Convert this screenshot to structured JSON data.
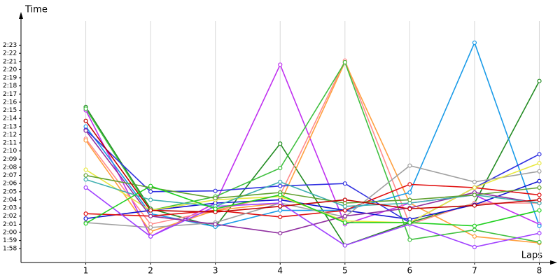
{
  "chart_data": {
    "type": "line",
    "y_label": "Time",
    "x_label": "Laps",
    "x": [
      1,
      2,
      3,
      4,
      5,
      6,
      7,
      8
    ],
    "xlim": [
      0,
      8.2
    ],
    "xticks": [
      1,
      2,
      3,
      4,
      5,
      6,
      7,
      8
    ],
    "ylim": [
      116.3,
      146.4
    ],
    "yticks": [
      {
        "value": 118,
        "label": "1:58"
      },
      {
        "value": 119,
        "label": "1:59"
      },
      {
        "value": 120,
        "label": "2:00"
      },
      {
        "value": 121,
        "label": "2:01"
      },
      {
        "value": 122,
        "label": "2:02"
      },
      {
        "value": 123,
        "label": "2:03"
      },
      {
        "value": 124,
        "label": "2:04"
      },
      {
        "value": 125,
        "label": "2:05"
      },
      {
        "value": 126,
        "label": "2:06"
      },
      {
        "value": 127,
        "label": "2:07"
      },
      {
        "value": 128,
        "label": "2:08"
      },
      {
        "value": 129,
        "label": "2:09"
      },
      {
        "value": 130,
        "label": "2:10"
      },
      {
        "value": 131,
        "label": "2:11"
      },
      {
        "value": 132,
        "label": "2:12"
      },
      {
        "value": 133,
        "label": "2:13"
      },
      {
        "value": 134,
        "label": "2:14"
      },
      {
        "value": 135,
        "label": "2:15"
      },
      {
        "value": 136,
        "label": "2:16"
      },
      {
        "value": 137,
        "label": "2:17"
      },
      {
        "value": 138,
        "label": "2:18"
      },
      {
        "value": 139,
        "label": "2:19"
      },
      {
        "value": 140,
        "label": "2:20"
      },
      {
        "value": 141,
        "label": "2:21"
      },
      {
        "value": 142,
        "label": "2:22"
      },
      {
        "value": 143,
        "label": "2:23"
      }
    ],
    "grid": "x",
    "series": [
      {
        "color": "#228b22",
        "values": [
          135.4,
          122.9,
          120.7,
          130.9,
          118.4,
          121.2,
          123.6,
          138.6
        ]
      },
      {
        "color": "#c030f0",
        "values": [
          135.0,
          119.5,
          123.6,
          140.6,
          121.0,
          123.6,
          124.6,
          121.0
        ]
      },
      {
        "color": "#ff8c8c",
        "values": [
          131.5,
          121.0,
          122.7,
          124.6,
          141.1,
          121.0,
          123.6,
          123.6
        ]
      },
      {
        "color": "#ffa040",
        "values": [
          131.3,
          120.1,
          122.7,
          123.6,
          140.9,
          123.6,
          119.5,
          118.7
        ]
      },
      {
        "color": "#40c040",
        "values": [
          135.2,
          122.7,
          124.4,
          127.9,
          140.9,
          119.1,
          120.3,
          118.8
        ]
      },
      {
        "color": "#1a9be8",
        "values": [
          133.0,
          122.3,
          120.7,
          122.7,
          122.7,
          124.9,
          143.3,
          120.8
        ]
      },
      {
        "color": "#1010d0",
        "values": [
          121.7,
          122.7,
          123.6,
          124.0,
          122.7,
          121.6,
          123.4,
          126.3
        ]
      },
      {
        "color": "#3030e0",
        "values": [
          132.6,
          125.0,
          125.1,
          125.7,
          126.0,
          121.2,
          125.5,
          129.6
        ]
      },
      {
        "color": "#e01010",
        "values": [
          122.3,
          122.0,
          122.7,
          121.9,
          122.7,
          125.9,
          125.5,
          124.6
        ]
      },
      {
        "color": "#a0a0a0",
        "values": [
          121.2,
          120.6,
          121.2,
          123.6,
          121.9,
          128.2,
          126.2,
          127.5
        ]
      },
      {
        "color": "#e8e840",
        "values": [
          127.7,
          122.7,
          124.0,
          124.4,
          121.4,
          121.2,
          125.5,
          128.5
        ]
      },
      {
        "color": "#9030a0",
        "values": [
          132.5,
          122.0,
          121.0,
          119.9,
          122.0,
          123.0,
          124.9,
          123.6
        ]
      },
      {
        "color": "#a040ff",
        "values": [
          125.5,
          119.5,
          123.2,
          123.6,
          118.4,
          121.0,
          118.2,
          119.9
        ]
      },
      {
        "color": "#40b0b0",
        "values": [
          126.5,
          124.0,
          123.2,
          126.2,
          123.2,
          123.6,
          124.6,
          123.6
        ]
      },
      {
        "color": "#60a030",
        "values": [
          127.0,
          125.5,
          124.2,
          124.9,
          123.6,
          124.0,
          124.6,
          125.5
        ]
      },
      {
        "color": "#c00000",
        "values": [
          133.7,
          122.7,
          122.5,
          123.2,
          124.0,
          122.9,
          123.3,
          124.0
        ]
      },
      {
        "color": "#20d020",
        "values": [
          121.1,
          125.7,
          122.9,
          124.6,
          121.2,
          121.2,
          120.8,
          122.7
        ]
      }
    ]
  }
}
